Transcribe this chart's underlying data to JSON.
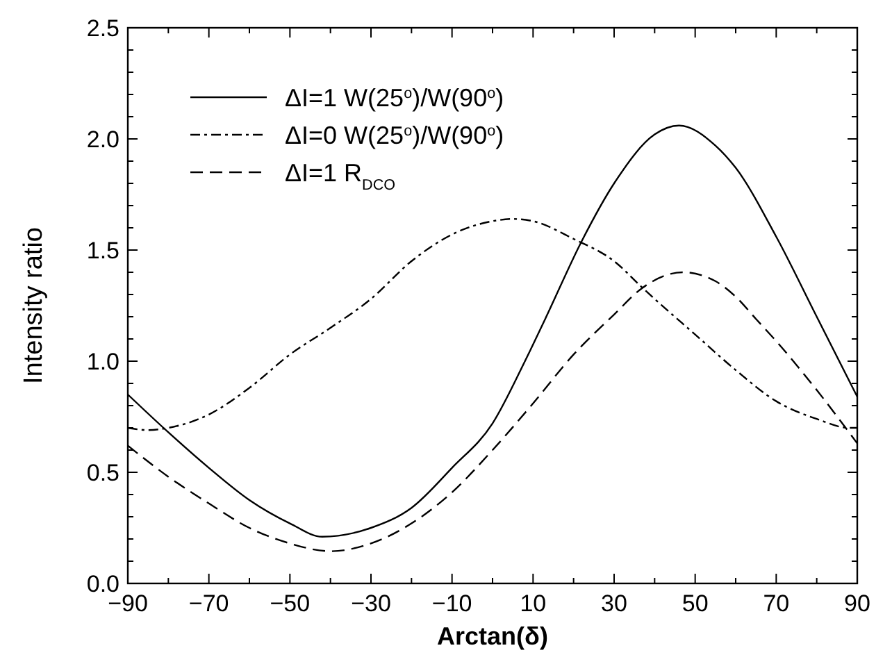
{
  "chart_data": {
    "type": "line",
    "xlabel": "Arctan(δ)",
    "ylabel": "Intensity ratio",
    "xlim": [
      -90,
      90
    ],
    "ylim": [
      0,
      2.5
    ],
    "xticks": [
      {
        "value": -90,
        "label": "−90"
      },
      {
        "value": -80,
        "label": null
      },
      {
        "value": -70,
        "label": "−70"
      },
      {
        "value": -60,
        "label": null
      },
      {
        "value": -50,
        "label": "−50"
      },
      {
        "value": -40,
        "label": null
      },
      {
        "value": -30,
        "label": "−30"
      },
      {
        "value": -20,
        "label": null
      },
      {
        "value": -10,
        "label": "−10"
      },
      {
        "value": 0,
        "label": null
      },
      10,
      {
        "value": 20,
        "label": null
      },
      30,
      {
        "value": 40,
        "label": null
      },
      50,
      {
        "value": 60,
        "label": null
      },
      70,
      {
        "value": 80,
        "label": null
      },
      90
    ],
    "yticks": [
      {
        "value": 0,
        "label": "0.0"
      },
      {
        "value": 0.1,
        "label": null
      },
      {
        "value": 0.2,
        "label": null
      },
      {
        "value": 0.3,
        "label": null
      },
      {
        "value": 0.4,
        "label": null
      },
      0.5,
      {
        "value": 0.6,
        "label": null
      },
      {
        "value": 0.7,
        "label": null
      },
      {
        "value": 0.8,
        "label": null
      },
      {
        "value": 0.9,
        "label": null
      },
      {
        "value": 1,
        "label": "1.0"
      },
      {
        "value": 1.1,
        "label": null
      },
      {
        "value": 1.2,
        "label": null
      },
      {
        "value": 1.3,
        "label": null
      },
      {
        "value": 1.4,
        "label": null
      },
      1.5,
      {
        "value": 1.6,
        "label": null
      },
      {
        "value": 1.7,
        "label": null
      },
      {
        "value": 1.8,
        "label": null
      },
      {
        "value": 1.9,
        "label": null
      },
      {
        "value": 2,
        "label": "2.0"
      },
      {
        "value": 2.1,
        "label": null
      },
      {
        "value": 2.2,
        "label": null
      },
      {
        "value": 2.3,
        "label": null
      },
      {
        "value": 2.4,
        "label": null
      },
      2.5
    ],
    "legend": "top left",
    "marker": "none",
    "series": [
      {
        "name": "ΔI=1 W(25$^{o}$)/W(90$^{o}$)",
        "color": "#000000",
        "line_style": "solid",
        "x": [
          -90,
          -80,
          -70,
          -60,
          -50,
          -42,
          -30,
          -20,
          -10,
          0,
          8,
          13,
          22,
          30,
          40,
          46,
          55,
          60,
          70,
          80,
          90
        ],
        "values": [
          0.85,
          0.68,
          0.52,
          0.375,
          0.27,
          0.21,
          0.25,
          0.34,
          0.52,
          0.72,
          1.0,
          1.19,
          1.54,
          1.8,
          2.02,
          2.06,
          1.97,
          1.87,
          1.56,
          1.2,
          0.84
        ]
      },
      {
        "name": "ΔI=0 W(25$^{o}$)/W(90$^{o}$)",
        "color": "#000000",
        "line_style": "dashdot",
        "x": [
          -90,
          -85,
          -80,
          -70,
          -60,
          -50,
          -40,
          -30,
          -20,
          -10,
          0,
          5,
          10,
          20,
          30,
          37,
          40,
          50,
          60,
          70,
          80,
          88,
          90
        ],
        "values": [
          0.7,
          0.69,
          0.7,
          0.76,
          0.88,
          1.03,
          1.15,
          1.28,
          1.45,
          1.57,
          1.63,
          1.64,
          1.63,
          1.55,
          1.45,
          1.33,
          1.28,
          1.12,
          0.96,
          0.82,
          0.74,
          0.7,
          0.7
        ]
      },
      {
        "name": "ΔI=1 R$_{DCO}$",
        "color": "#000000",
        "line_style": "dashed",
        "x": [
          -90,
          -80,
          -70,
          -60,
          -50,
          -40,
          -30,
          -20,
          -10,
          0,
          10,
          20,
          30,
          37,
          47,
          55,
          60,
          65,
          70,
          80,
          90
        ],
        "values": [
          0.62,
          0.48,
          0.36,
          0.25,
          0.18,
          0.145,
          0.18,
          0.27,
          0.41,
          0.6,
          0.81,
          1.03,
          1.21,
          1.33,
          1.4,
          1.36,
          1.29,
          1.19,
          1.09,
          0.87,
          0.63
        ]
      }
    ]
  }
}
